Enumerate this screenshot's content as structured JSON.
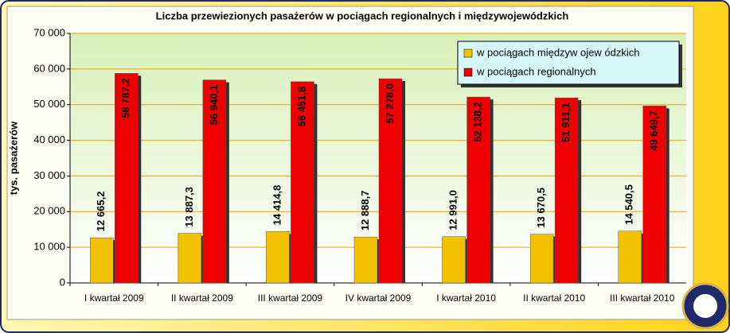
{
  "chart_data": {
    "type": "bar",
    "title": "Liczba przewiezionych pasażerów w pociągach regionalnych i międzywojewódzkich",
    "y_label": "tys. pasażerów",
    "categories": [
      "I kwartał 2009",
      "II kwartał 2009",
      "III kwartał 2009",
      "IV kwartał 2009",
      "I kwartał 2010",
      "II kwartał 2010",
      "III kwartał 2010"
    ],
    "series": [
      {
        "name": "w  pociągach międzyw ojew ódzkich",
        "color": "#f2c200",
        "values": [
          12665.2,
          13887.3,
          14414.8,
          12888.7,
          12991.0,
          13670.5,
          14540.5
        ],
        "value_labels": [
          "12 665,2",
          "13 887,3",
          "14 414,8",
          "12 888,7",
          "12 991,0",
          "13 670,5",
          "14 540,5"
        ]
      },
      {
        "name": "w  pociągach regionalnych",
        "color": "#ee0000",
        "values": [
          58787.2,
          56940.1,
          56451.8,
          57278.0,
          52138.2,
          51911.1,
          49649.7
        ],
        "value_labels": [
          "58 787,2",
          "56 940,1",
          "56 451,8",
          "57 278,0",
          "52 138,2",
          "51 911,1",
          "49 649,7"
        ]
      }
    ],
    "ylim": [
      0,
      70000
    ],
    "yticks": [
      0,
      {
        "value": 10000,
        "label": "10 000"
      },
      {
        "value": 20000,
        "label": "20 000"
      },
      {
        "value": 30000,
        "label": "30 000"
      },
      {
        "value": 40000,
        "label": "40 000"
      },
      {
        "value": 50000,
        "label": "50 000"
      },
      {
        "value": 60000,
        "label": "60 000"
      },
      {
        "value": 70000,
        "label": "70 000"
      }
    ],
    "grid": true,
    "legend": "top-right"
  }
}
